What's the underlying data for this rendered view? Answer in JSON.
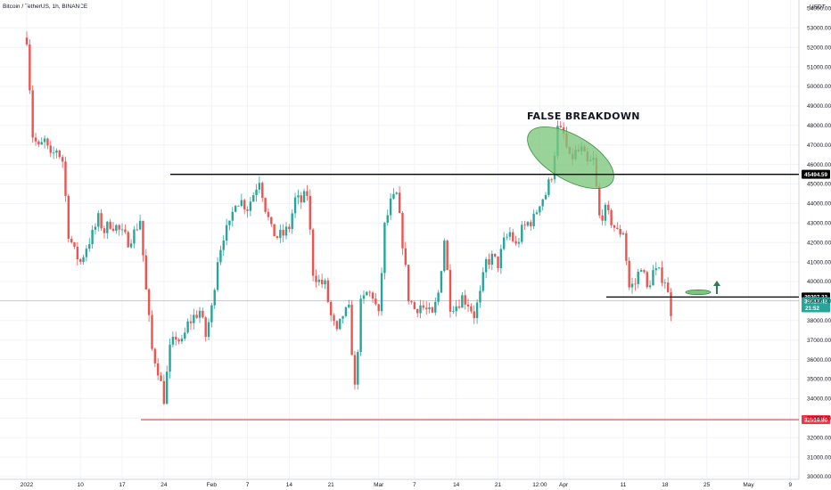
{
  "header": {
    "symbol_label": "Bitcoin / TetherUS, 1h, BINANCE"
  },
  "chart_data": {
    "type": "candlestick",
    "currency": "USDT",
    "y_range": [
      30000,
      54500
    ],
    "y_ticks": [
      53000,
      52000,
      51000,
      50000,
      49000,
      48000,
      47000,
      46000,
      45000,
      44000,
      43000,
      42000,
      41000,
      40000,
      39000,
      38000,
      37000,
      36000,
      35000,
      34000,
      33000,
      32000,
      31000,
      30000
    ],
    "y_ticks_top": "54000.00",
    "x_tick_labels": [
      "2022",
      "10",
      "17",
      "24",
      "Feb",
      "7",
      "14",
      "21",
      "Mar",
      "7",
      "14",
      "21",
      "12:00",
      "Apr",
      "11",
      "18",
      "25",
      "May",
      "9"
    ],
    "price_path": [
      [
        "2022-01-01",
        52500
      ],
      [
        "2022-01-02",
        47500
      ],
      [
        "2022-01-03",
        46800
      ],
      [
        "2022-01-04",
        47200
      ],
      [
        "2022-01-05",
        46300
      ],
      [
        "2022-01-06",
        46800
      ],
      [
        "2022-01-07",
        46200
      ],
      [
        "2022-01-08",
        42500
      ],
      [
        "2022-01-09",
        41500
      ],
      [
        "2022-01-10",
        41000
      ],
      [
        "2022-01-11",
        41800
      ],
      [
        "2022-01-12",
        42400
      ],
      [
        "2022-01-13",
        43200
      ],
      [
        "2022-01-14",
        42600
      ],
      [
        "2022-01-15",
        43000
      ],
      [
        "2022-01-16",
        42800
      ],
      [
        "2022-01-17",
        42400
      ],
      [
        "2022-01-18",
        42100
      ],
      [
        "2022-01-19",
        42500
      ],
      [
        "2022-01-20",
        43200
      ],
      [
        "2022-01-21",
        39500
      ],
      [
        "2022-01-22",
        36500
      ],
      [
        "2022-01-23",
        35500
      ],
      [
        "2022-01-24",
        34000
      ],
      [
        "2022-01-25",
        36500
      ],
      [
        "2022-01-26",
        37200
      ],
      [
        "2022-01-27",
        36800
      ],
      [
        "2022-01-28",
        37800
      ],
      [
        "2022-01-29",
        38200
      ],
      [
        "2022-01-30",
        38500
      ],
      [
        "2022-01-31",
        37200
      ],
      [
        "2022-02-01",
        38600
      ],
      [
        "2022-02-02",
        41200
      ],
      [
        "2022-02-03",
        42400
      ],
      [
        "2022-02-04",
        42800
      ],
      [
        "2022-02-05",
        44200
      ],
      [
        "2022-02-06",
        44100
      ],
      [
        "2022-02-07",
        43800
      ],
      [
        "2022-02-08",
        44500
      ],
      [
        "2022-02-09",
        45300
      ],
      [
        "2022-02-10",
        43800
      ],
      [
        "2022-02-11",
        42600
      ],
      [
        "2022-02-12",
        42300
      ],
      [
        "2022-02-13",
        42400
      ],
      [
        "2022-02-14",
        42800
      ],
      [
        "2022-02-15",
        44200
      ],
      [
        "2022-02-16",
        44100
      ],
      [
        "2022-02-17",
        44500
      ],
      [
        "2022-02-18",
        40500
      ],
      [
        "2022-02-19",
        40000
      ],
      [
        "2022-02-20",
        39800
      ],
      [
        "2022-02-21",
        38200
      ],
      [
        "2022-02-22",
        37300
      ],
      [
        "2022-02-23",
        38300
      ],
      [
        "2022-02-24",
        38500
      ],
      [
        "2022-02-25",
        34500
      ],
      [
        "2022-02-26",
        38800
      ],
      [
        "2022-02-27",
        39400
      ],
      [
        "2022-02-28",
        39300
      ],
      [
        "2022-03-01",
        38200
      ],
      [
        "2022-03-02",
        42800
      ],
      [
        "2022-03-03",
        44000
      ],
      [
        "2022-03-04",
        44400
      ],
      [
        "2022-03-05",
        42000
      ],
      [
        "2022-03-06",
        39200
      ],
      [
        "2022-03-07",
        38600
      ],
      [
        "2022-03-08",
        38800
      ],
      [
        "2022-03-09",
        38500
      ],
      [
        "2022-03-10",
        38200
      ],
      [
        "2022-03-11",
        39400
      ],
      [
        "2022-03-12",
        42200
      ],
      [
        "2022-03-13",
        38800
      ],
      [
        "2022-03-14",
        38800
      ],
      [
        "2022-03-15",
        39200
      ],
      [
        "2022-03-16",
        38900
      ],
      [
        "2022-03-17",
        38300
      ],
      [
        "2022-03-18",
        39300
      ],
      [
        "2022-03-19",
        41000
      ],
      [
        "2022-03-20",
        41200
      ],
      [
        "2022-03-21",
        40900
      ],
      [
        "2022-03-22",
        42000
      ],
      [
        "2022-03-23",
        42500
      ],
      [
        "2022-03-24",
        41800
      ],
      [
        "2022-03-25",
        42600
      ],
      [
        "2022-03-26",
        43000
      ],
      [
        "2022-03-27",
        43200
      ],
      [
        "2022-03-28",
        44100
      ],
      [
        "2022-03-29",
        44500
      ],
      [
        "2022-03-30",
        45500
      ],
      [
        "2022-03-31",
        47800
      ],
      [
        "2022-04-01",
        47500
      ],
      [
        "2022-04-02",
        46200
      ],
      [
        "2022-04-03",
        46600
      ],
      [
        "2022-04-04",
        46700
      ],
      [
        "2022-04-05",
        46000
      ],
      [
        "2022-04-06",
        46200
      ],
      [
        "2022-04-07",
        43300
      ],
      [
        "2022-04-08",
        43600
      ],
      [
        "2022-04-09",
        43100
      ],
      [
        "2022-04-10",
        42500
      ],
      [
        "2022-04-11",
        42600
      ],
      [
        "2022-04-12",
        39700
      ],
      [
        "2022-04-13",
        39900
      ],
      [
        "2022-04-14",
        40900
      ],
      [
        "2022-04-15",
        39600
      ],
      [
        "2022-04-16",
        40500
      ],
      [
        "2022-04-17",
        40400
      ],
      [
        "2022-04-18",
        40100
      ],
      [
        "2022-04-19",
        38500
      ]
    ],
    "horizontal_levels": [
      {
        "price": 45494.59,
        "label": "45494.59",
        "color": "#000000"
      },
      {
        "price": 39207.22,
        "label": "39207.22",
        "color": "#000000"
      },
      {
        "price": 32919.86,
        "label": "32919.86",
        "color": "#f23645"
      }
    ],
    "current_price": {
      "label": "39017.48",
      "countdown": "21:52",
      "color": "#26a69a"
    },
    "annotation": {
      "text": "FALSE BREAKDOWN"
    },
    "colors": {
      "up": "#26a69a",
      "down": "#ef5350",
      "grid": "#f0f3fa",
      "ellipse_fill": "#7cc67c",
      "arrow": "#2e7d4f"
    }
  }
}
